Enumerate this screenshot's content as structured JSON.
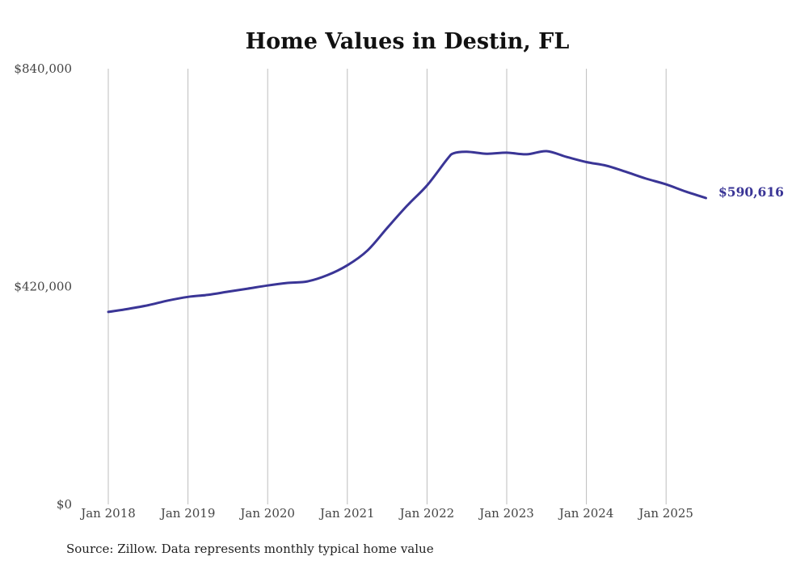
{
  "chart_data": {
    "type": "line",
    "title": "Home Values in Destin, FL",
    "xlabel": "",
    "ylabel": "",
    "x_ticks": [
      "Jan 2018",
      "Jan 2019",
      "Jan 2020",
      "Jan 2021",
      "Jan 2022",
      "Jan 2023",
      "Jan 2024",
      "Jan 2025"
    ],
    "y_ticks": [
      "$840,000",
      "$420,000",
      "$0"
    ],
    "ylim": [
      0,
      840000
    ],
    "xlim": [
      "2018-01",
      "2025-07"
    ],
    "grid": "vertical",
    "legend": "none",
    "line_color": "#3a3596",
    "end_label": "$590,616",
    "series": [
      {
        "points": [
          {
            "x": "2018-01",
            "y": 371000
          },
          {
            "x": "2018-04",
            "y": 377000
          },
          {
            "x": "2018-07",
            "y": 384000
          },
          {
            "x": "2018-10",
            "y": 393000
          },
          {
            "x": "2019-01",
            "y": 400000
          },
          {
            "x": "2019-04",
            "y": 404000
          },
          {
            "x": "2019-07",
            "y": 410000
          },
          {
            "x": "2019-10",
            "y": 416000
          },
          {
            "x": "2020-01",
            "y": 422000
          },
          {
            "x": "2020-04",
            "y": 427000
          },
          {
            "x": "2020-07",
            "y": 430000
          },
          {
            "x": "2020-10",
            "y": 442000
          },
          {
            "x": "2021-01",
            "y": 461000
          },
          {
            "x": "2021-04",
            "y": 489000
          },
          {
            "x": "2021-07",
            "y": 533000
          },
          {
            "x": "2021-10",
            "y": 576000
          },
          {
            "x": "2022-01",
            "y": 615000
          },
          {
            "x": "2022-04",
            "y": 665000
          },
          {
            "x": "2022-05",
            "y": 677000
          },
          {
            "x": "2022-07",
            "y": 680000
          },
          {
            "x": "2022-10",
            "y": 676000
          },
          {
            "x": "2023-01",
            "y": 678000
          },
          {
            "x": "2023-04",
            "y": 675000
          },
          {
            "x": "2023-07",
            "y": 681000
          },
          {
            "x": "2023-10",
            "y": 670000
          },
          {
            "x": "2024-01",
            "y": 660000
          },
          {
            "x": "2024-04",
            "y": 653000
          },
          {
            "x": "2024-07",
            "y": 641000
          },
          {
            "x": "2024-10",
            "y": 628000
          },
          {
            "x": "2025-01",
            "y": 617000
          },
          {
            "x": "2025-04",
            "y": 603000
          },
          {
            "x": "2025-07",
            "y": 590616
          }
        ]
      }
    ]
  },
  "source_note": "Source: Zillow. Data represents monthly typical home value"
}
